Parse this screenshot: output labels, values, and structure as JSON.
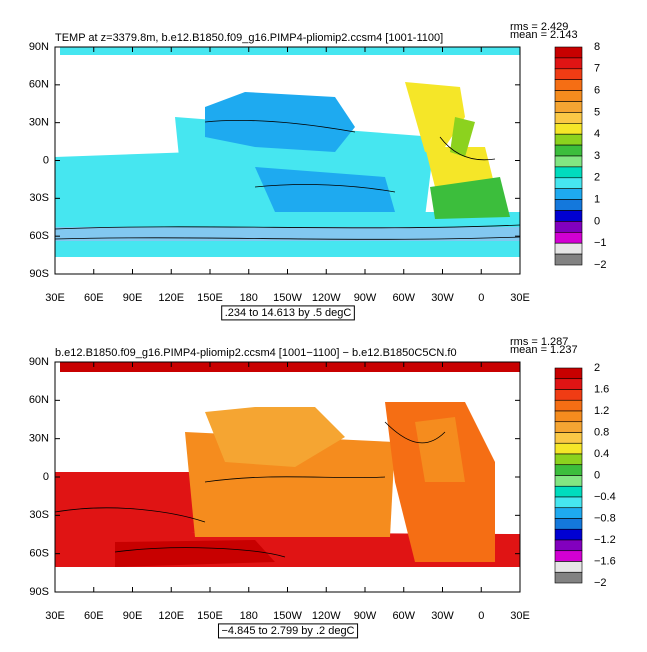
{
  "panels": [
    {
      "title": "TEMP at z=3379.8m, b.e12.B1850.f09_g16.PIMP4-pliomip2.ccsm4 [1001-1100]",
      "mean": "mean = 2.143",
      "rms": "rms = 2.429",
      "range_note": ".234 to 14.613 by .5 degC",
      "lat_labels": [
        "90N",
        "60N",
        "30N",
        "0",
        "30S",
        "60S",
        "90S"
      ],
      "lon_labels": [
        "30E",
        "60E",
        "90E",
        "120E",
        "150E",
        "180",
        "150W",
        "120W",
        "90W",
        "60W",
        "30W",
        "0",
        "30E"
      ],
      "colorbar_labels": [
        "8",
        "7",
        "6",
        "5",
        "4",
        "3",
        "2",
        "1",
        "0",
        "−1",
        "−2"
      ]
    },
    {
      "title": "b.e12.B1850.f09_g16.PIMP4-pliomip2.ccsm4 [1001−1100] − b.e12.B1850C5CN.f0",
      "mean": "mean = 1.237",
      "rms": "rms = 1.287",
      "range_note": "−4.845 to 2.799 by .2 degC",
      "lat_labels": [
        "90N",
        "60N",
        "30N",
        "0",
        "30S",
        "60S",
        "90S"
      ],
      "lon_labels": [
        "30E",
        "60E",
        "90E",
        "120E",
        "150E",
        "180",
        "150W",
        "120W",
        "90W",
        "60W",
        "30W",
        "0",
        "30E"
      ],
      "colorbar_labels": [
        "2",
        "1.6",
        "1.2",
        "0.8",
        "0.4",
        "0",
        "−0.4",
        "−0.8",
        "−1.2",
        "−1.6",
        "−2"
      ]
    }
  ],
  "colorbar_colors": [
    "#c80000",
    "#e01414",
    "#f03c14",
    "#f56e14",
    "#f58c1e",
    "#f5a532",
    "#fac846",
    "#f5e628",
    "#8cd21e",
    "#3cbe3c",
    "#82e682",
    "#00dcbe",
    "#46e6f0",
    "#1eaaf0",
    "#1478dc",
    "#0000d2",
    "#8200be",
    "#d200d2",
    "#e6e6e6",
    "#828282"
  ]
}
